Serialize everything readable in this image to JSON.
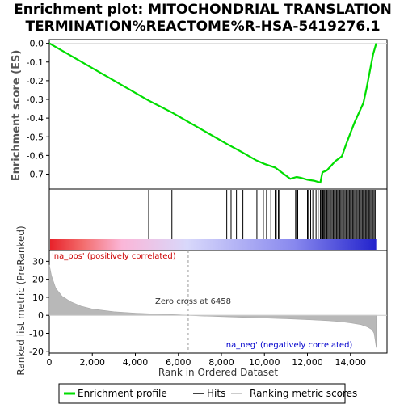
{
  "chart_data": {
    "type": "line",
    "title_line1": "Enrichment plot: MITOCHONDRIAL TRANSLATION",
    "title_line2": "TERMINATION%REACTOME%R-HSA-5419276.1",
    "es_ylabel": "Enrichment score (ES)",
    "metric_ylabel": "Ranked list metric (PreRanked)",
    "xlabel": "Rank in Ordered Dataset",
    "xlim": [
      0,
      15700
    ],
    "es_ylim": [
      -0.78,
      0.02
    ],
    "metric_ylim": [
      -21,
      36
    ],
    "x_ticks": [
      0,
      2000,
      4000,
      6000,
      8000,
      10000,
      12000,
      14000
    ],
    "x_tick_labels": [
      "0",
      "2,000",
      "4,000",
      "6,000",
      "8,000",
      "10,000",
      "12,000",
      "14,000"
    ],
    "es_ticks": [
      0.0,
      -0.1,
      -0.2,
      -0.3,
      -0.4,
      -0.5,
      -0.6,
      -0.7
    ],
    "es_tick_labels": [
      "0.0",
      "-0.1",
      "-0.2",
      "-0.3",
      "-0.4",
      "-0.5",
      "-0.6",
      "-0.7"
    ],
    "metric_ticks": [
      30,
      20,
      10,
      0,
      -10,
      -20
    ],
    "metric_tick_labels": [
      "30",
      "20",
      "10",
      "0",
      "-10",
      "-20"
    ],
    "zero_cross_label": "Zero cross at 6458",
    "zero_cross_rank": 6458,
    "na_pos_label": "'na_pos' (positively correlated)",
    "na_neg_label": "'na_neg' (negatively correlated)",
    "es_curve": {
      "x": [
        0,
        4600,
        5700,
        8200,
        9000,
        9600,
        10000,
        10500,
        10800,
        11200,
        11500,
        11700,
        12000,
        12300,
        12600,
        12700,
        12900,
        13100,
        13300,
        13600,
        13800,
        14000,
        14200,
        14400,
        14600,
        14750,
        14900,
        15050,
        15200
      ],
      "y": [
        0.0,
        -0.305,
        -0.37,
        -0.535,
        -0.585,
        -0.625,
        -0.645,
        -0.665,
        -0.69,
        -0.725,
        -0.715,
        -0.72,
        -0.73,
        -0.735,
        -0.745,
        -0.69,
        -0.68,
        -0.655,
        -0.63,
        -0.605,
        -0.54,
        -0.48,
        -0.42,
        -0.37,
        -0.32,
        -0.24,
        -0.15,
        -0.06,
        0.0
      ]
    },
    "hits": [
      4620,
      5700,
      8250,
      8450,
      8700,
      9000,
      9650,
      9950,
      10100,
      10300,
      10500,
      10550,
      10650,
      10700,
      11450,
      11500,
      11550,
      12000,
      12050,
      12150,
      12250,
      12400,
      12500,
      12600,
      12650,
      12700,
      12720,
      12760,
      12800,
      12850,
      12900,
      12950,
      13000,
      13050,
      13100,
      13150,
      13200,
      13250,
      13300,
      13350,
      13400,
      13450,
      13500,
      13550,
      13600,
      13650,
      13700,
      13750,
      13800,
      13850,
      13900,
      13950,
      14000,
      14050,
      14100,
      14150,
      14200,
      14250,
      14300,
      14350,
      14400,
      14450,
      14500,
      14550,
      14600,
      14650,
      14700,
      14750,
      14800,
      14850,
      14900,
      14950,
      15000,
      15050,
      15100,
      15150
    ],
    "metric_curve": {
      "x": [
        0,
        100,
        300,
        600,
        1000,
        1500,
        2000,
        3000,
        4000,
        5000,
        6000,
        6458,
        7000,
        8000,
        9000,
        10000,
        11000,
        12000,
        13000,
        13500,
        14000,
        14500,
        14800,
        15000,
        15100,
        15150,
        15200
      ],
      "y": [
        28,
        22,
        15,
        10.5,
        7.5,
        5,
        3.5,
        2,
        1.2,
        0.7,
        0.3,
        0,
        -0.3,
        -0.7,
        -1.1,
        -1.5,
        -1.9,
        -2.4,
        -3,
        -3.5,
        -4.2,
        -5.2,
        -6.5,
        -8,
        -10,
        -14,
        -18
      ]
    },
    "gradient_colors": [
      "#e8222a",
      "#f36c6c",
      "#fbb6d8",
      "#d8d8fb",
      "#8888ee",
      "#2222cc"
    ],
    "curve_color": "#00dd00",
    "legend": {
      "profile": "Enrichment profile",
      "hits": "Hits",
      "metric": "Ranking metric scores"
    }
  }
}
